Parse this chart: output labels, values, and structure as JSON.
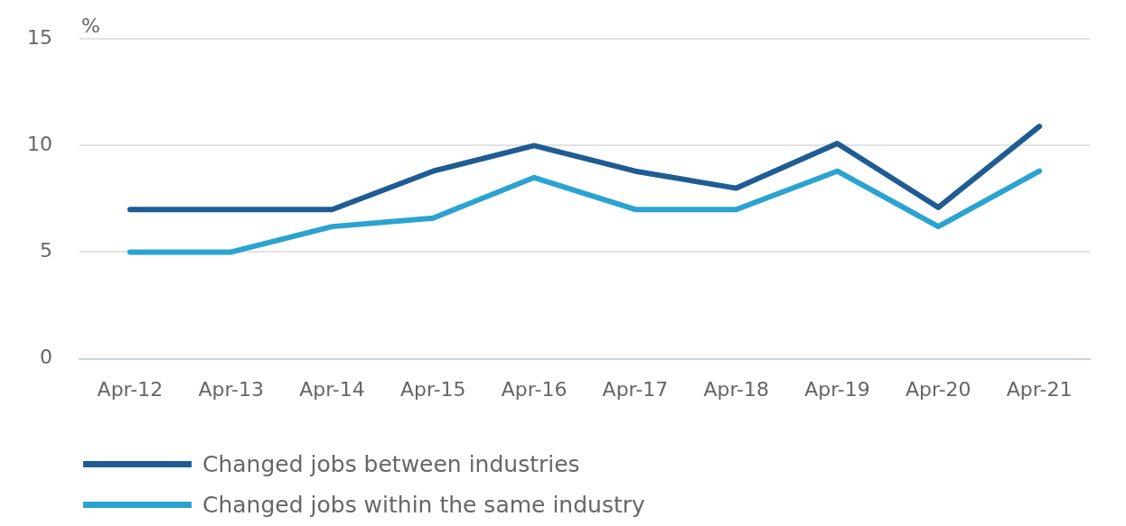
{
  "chart_data": {
    "type": "line",
    "ylabel": "%",
    "categories": [
      "Apr-12",
      "Apr-13",
      "Apr-14",
      "Apr-15",
      "Apr-16",
      "Apr-17",
      "Apr-18",
      "Apr-19",
      "Apr-20",
      "Apr-21"
    ],
    "series": [
      {
        "name": "Changed jobs between industries",
        "color": "#1f5c94",
        "values": [
          7.0,
          7.0,
          7.0,
          8.8,
          10.0,
          8.8,
          8.0,
          10.1,
          7.1,
          10.9
        ]
      },
      {
        "name": "Changed jobs within the same industry",
        "color": "#2aa3d0",
        "values": [
          5.0,
          5.0,
          6.2,
          6.6,
          8.5,
          7.0,
          7.0,
          8.8,
          6.2,
          8.8
        ]
      }
    ],
    "ylim": [
      0,
      15
    ],
    "yticks": [
      0,
      5,
      10,
      15
    ],
    "grid": "y",
    "legend": "bottom",
    "marker": "none",
    "line_style": "solid"
  }
}
